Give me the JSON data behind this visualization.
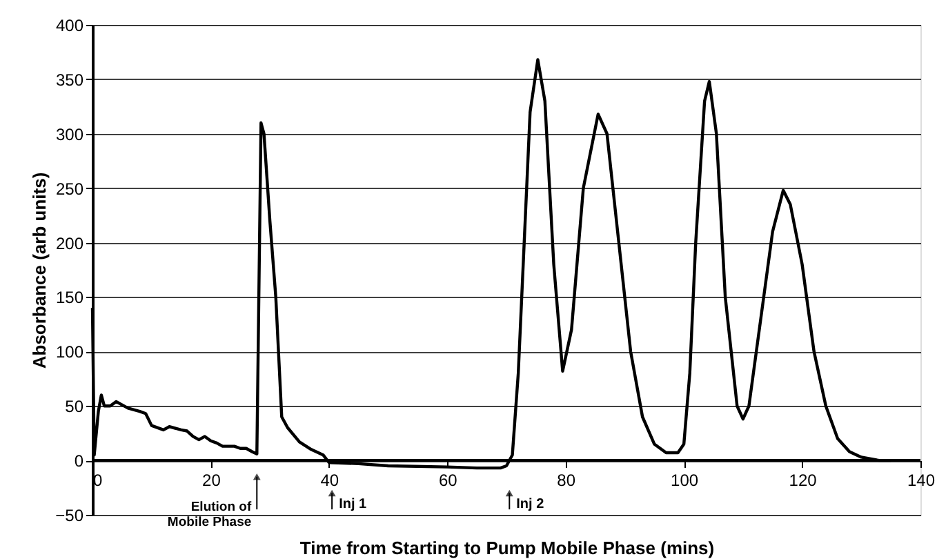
{
  "chart_data": {
    "type": "line",
    "xlabel": "Time from Starting to Pump Mobile Phase (mins)",
    "ylabel": "Absorbance (arb units)",
    "xlim": [
      0,
      140
    ],
    "xticks": [
      0,
      20,
      40,
      60,
      80,
      100,
      120,
      140
    ],
    "ylim": [
      -50,
      400
    ],
    "yticks": [
      -50,
      0,
      50,
      100,
      150,
      200,
      250,
      300,
      350,
      400
    ],
    "grid": "y",
    "marker": "none",
    "line_style": "solid",
    "series": [
      {
        "color": "#000000",
        "x": [
          0,
          0.3,
          1,
          1.5,
          2,
          3,
          4,
          6,
          8,
          9,
          10,
          12,
          13,
          15,
          16,
          17,
          18,
          19,
          20,
          21,
          22,
          24,
          25,
          26,
          27,
          27.8,
          28.5,
          29,
          30,
          31,
          32,
          33,
          35,
          37,
          39,
          40,
          45,
          50,
          60,
          65,
          69,
          70,
          71,
          72,
          73,
          74,
          75.3,
          76.5,
          78,
          79.5,
          81,
          83,
          85.5,
          87,
          89,
          91,
          93,
          95,
          97,
          99,
          100,
          101,
          102,
          103.5,
          104.3,
          105.5,
          107,
          109,
          110,
          111,
          113,
          115,
          116.8,
          118,
          120,
          122,
          124,
          126,
          128,
          130,
          133,
          135
        ],
        "values": [
          140,
          5,
          45,
          60,
          50,
          50,
          54,
          48,
          45,
          43,
          32,
          28,
          31,
          28,
          27,
          22,
          19,
          22,
          18,
          16,
          13,
          13,
          11,
          11,
          8,
          6,
          310,
          300,
          220,
          150,
          40,
          30,
          17,
          10,
          5,
          -2,
          -3,
          -5,
          -6,
          -7,
          -7,
          -5,
          5,
          80,
          200,
          320,
          368,
          330,
          180,
          82,
          120,
          250,
          318,
          300,
          200,
          100,
          40,
          15,
          7,
          7,
          15,
          80,
          200,
          330,
          348,
          300,
          150,
          50,
          38,
          50,
          130,
          210,
          248,
          235,
          180,
          100,
          50,
          20,
          8,
          3,
          0,
          0
        ]
      }
    ],
    "annotations": [
      {
        "text": "Elution of\nMobile Phase",
        "x": 27.8,
        "y": -15
      },
      {
        "text": "Inj 1",
        "x": 40.5,
        "y": -30
      },
      {
        "text": "Inj 2",
        "x": 70.5,
        "y": -30
      }
    ]
  }
}
